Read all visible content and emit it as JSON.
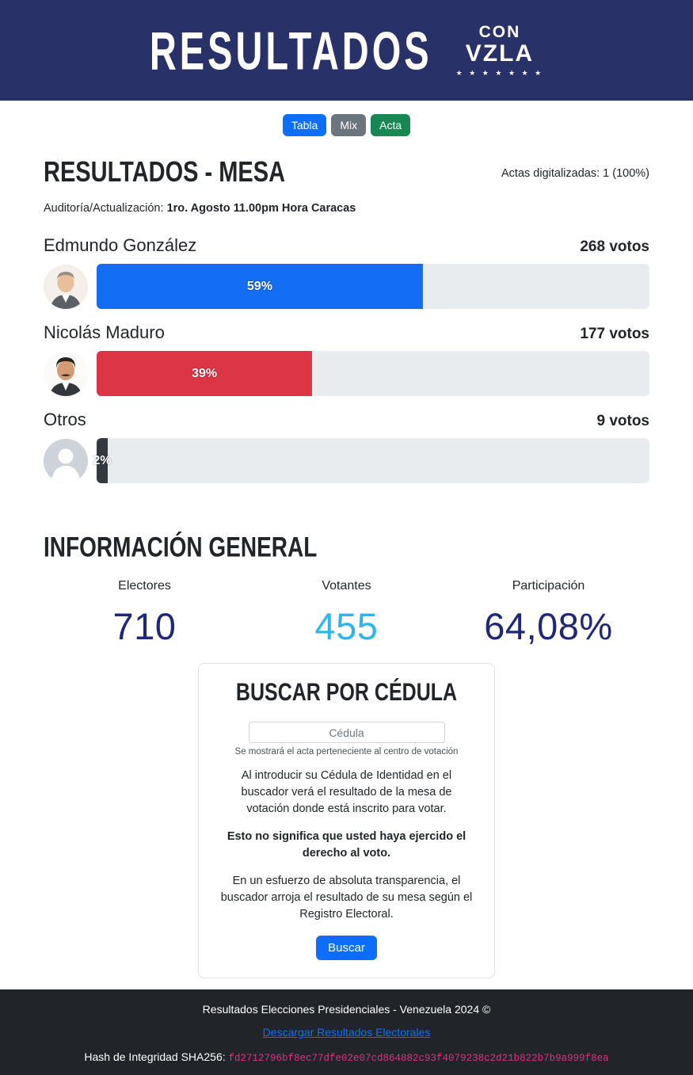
{
  "header": {
    "title": "RESULTADOS",
    "logo_line1": "CON",
    "logo_line2": "VZLA",
    "logo_stars": "★ ★ ★ ★ ★ ★ ★",
    "background_color": "#283168"
  },
  "tabs": [
    {
      "label": "Tabla",
      "color": "#0d6efd"
    },
    {
      "label": "Mix",
      "color": "#6c757d"
    },
    {
      "label": "Acta",
      "color": "#198754"
    }
  ],
  "results": {
    "title": "RESULTADOS - MESA",
    "actas_digitalizadas": "Actas digitalizadas: 1 (100%)",
    "audit_label": "Auditoría/Actualización:",
    "audit_value": "1ro. Agosto 11.00pm Hora Caracas",
    "candidates": [
      {
        "name": "Edmundo González",
        "votes": "268 votos",
        "pct_label": "59%",
        "pct": 59,
        "bar_color": "#146ef5"
      },
      {
        "name": "Nicolás Maduro",
        "votes": "177 votos",
        "pct_label": "39%",
        "pct": 39,
        "bar_color": "#dc3545"
      },
      {
        "name": "Otros",
        "votes": "9 votos",
        "pct_label": "2%",
        "pct": 2,
        "bar_color": "#343a40"
      }
    ],
    "track_color": "#e9ecef"
  },
  "info": {
    "title": "INFORMACIÓN GENERAL",
    "stats": [
      {
        "label": "Electores",
        "value": "710",
        "color": "#1f2878"
      },
      {
        "label": "Votantes",
        "value": "455",
        "color": "#2fb5ea"
      },
      {
        "label": "Participación",
        "value": "64,08%",
        "color": "#1f2878"
      }
    ]
  },
  "search": {
    "title": "BUSCAR POR CÉDULA",
    "input_placeholder": "Cédula",
    "helper": "Se mostrará el acta perteneciente al centro de votación",
    "p1": "Al introducir su Cédula de Identidad en el buscador verá el resultado de la mesa de votación donde está inscrito para votar.",
    "p2": "Esto no significa que usted haya ejercido el derecho al voto.",
    "p3": "En un esfuerzo de absoluta transparencia, el buscador arroja el resultado de su mesa según el Registro Electoral.",
    "button_label": "Buscar",
    "button_color": "#0d6efd"
  },
  "footer": {
    "copyright": "Resultados Elecciones Presidenciales - Venezuela 2024 ©",
    "download_link": "Descargar Resultados Electorales",
    "hash_label": "Hash de Integridad SHA256:",
    "hash_value": "fd2712796bf8ec77dfe02e07cd864882c93f4079238c2d21b822b7b9a999f8ea",
    "hash_color": "#d63384",
    "background_color": "#212529"
  }
}
